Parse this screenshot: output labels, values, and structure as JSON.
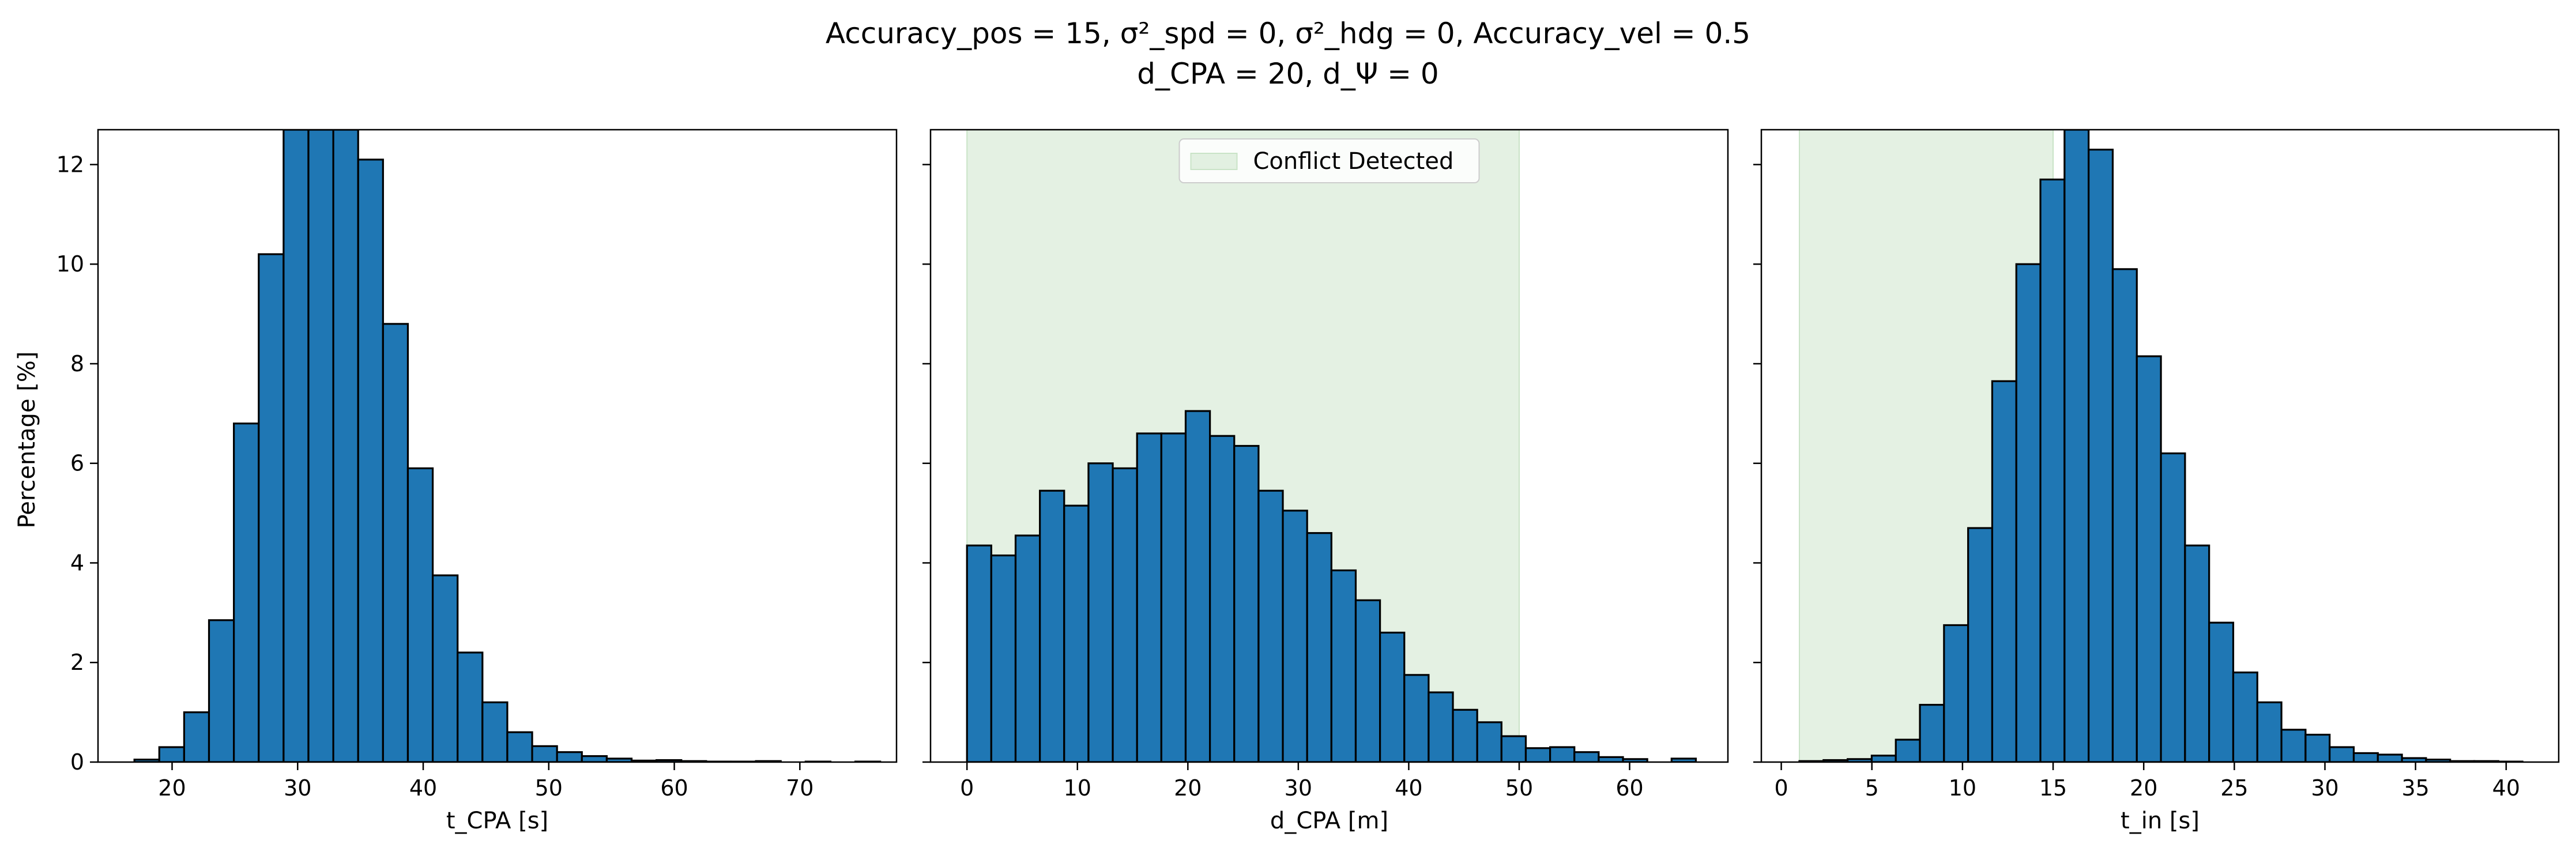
{
  "figure": {
    "title_line1": "Accuracy_pos = 15, σ²_spd = 0, σ²_hdg = 0, Accuracy_vel = 0.5",
    "title_line2": "d_CPA = 20, d_Ψ = 0",
    "ylabel": "Percentage [%]",
    "yticks": [
      0,
      2,
      4,
      6,
      8,
      10,
      12
    ],
    "ylim": [
      0,
      12.7
    ]
  },
  "chart_data": [
    {
      "type": "bar",
      "xlabel": "t_CPA [s]",
      "xlim": [
        14.1,
        77.7
      ],
      "xticks": [
        20,
        30,
        40,
        50,
        60,
        70
      ],
      "ylim": [
        0,
        12.7
      ],
      "bar_color": "#1f77b4",
      "bins": {
        "start": 17.0,
        "width": 1.98,
        "values": [
          0.05,
          0.3,
          1.0,
          2.85,
          6.8,
          10.2,
          12.7,
          12.7,
          12.7,
          12.1,
          8.8,
          5.9,
          3.75,
          2.2,
          1.2,
          0.6,
          0.32,
          0.2,
          0.12,
          0.07,
          0.03,
          0.04,
          0.02,
          0.01,
          0.01,
          0.02,
          0.0,
          0.01,
          0.0,
          0.01
        ]
      }
    },
    {
      "type": "bar",
      "xlabel": "d_CPA [m]",
      "xlim": [
        -3.3,
        68.9
      ],
      "xticks": [
        0,
        10,
        20,
        30,
        40,
        50,
        60
      ],
      "ylim": [
        0,
        12.7
      ],
      "bar_color": "#1f77b4",
      "shaded_region": {
        "x0": 0,
        "x1": 50,
        "color": "#c9e3c7",
        "label": "Conflict Detected"
      },
      "legend_position": "upper center",
      "bins": {
        "start": 0.0,
        "width": 2.2,
        "values": [
          4.35,
          4.15,
          4.55,
          5.45,
          5.15,
          6.0,
          5.9,
          6.6,
          6.6,
          7.05,
          6.55,
          6.35,
          5.45,
          5.05,
          4.6,
          3.85,
          3.25,
          2.6,
          1.75,
          1.4,
          1.05,
          0.8,
          0.52,
          0.28,
          0.3,
          0.2,
          0.1,
          0.06,
          0.0,
          0.07
        ]
      }
    },
    {
      "type": "bar",
      "xlabel": "t_in [s]",
      "xlim": [
        -1.1,
        42.9
      ],
      "xticks": [
        0,
        5,
        10,
        15,
        20,
        25,
        30,
        35,
        40
      ],
      "ylim": [
        0,
        12.7
      ],
      "bar_color": "#1f77b4",
      "shaded_region": {
        "x0": 1.0,
        "x1": 15.0,
        "color": "#c9e3c7"
      },
      "bins": {
        "start": 1.0,
        "width": 1.33,
        "values": [
          0.02,
          0.04,
          0.06,
          0.13,
          0.45,
          1.15,
          2.75,
          4.7,
          7.65,
          10.0,
          11.7,
          12.7,
          12.3,
          9.9,
          8.15,
          6.2,
          4.35,
          2.8,
          1.8,
          1.2,
          0.65,
          0.55,
          0.3,
          0.18,
          0.15,
          0.08,
          0.05,
          0.02,
          0.02,
          0.01
        ]
      }
    }
  ]
}
